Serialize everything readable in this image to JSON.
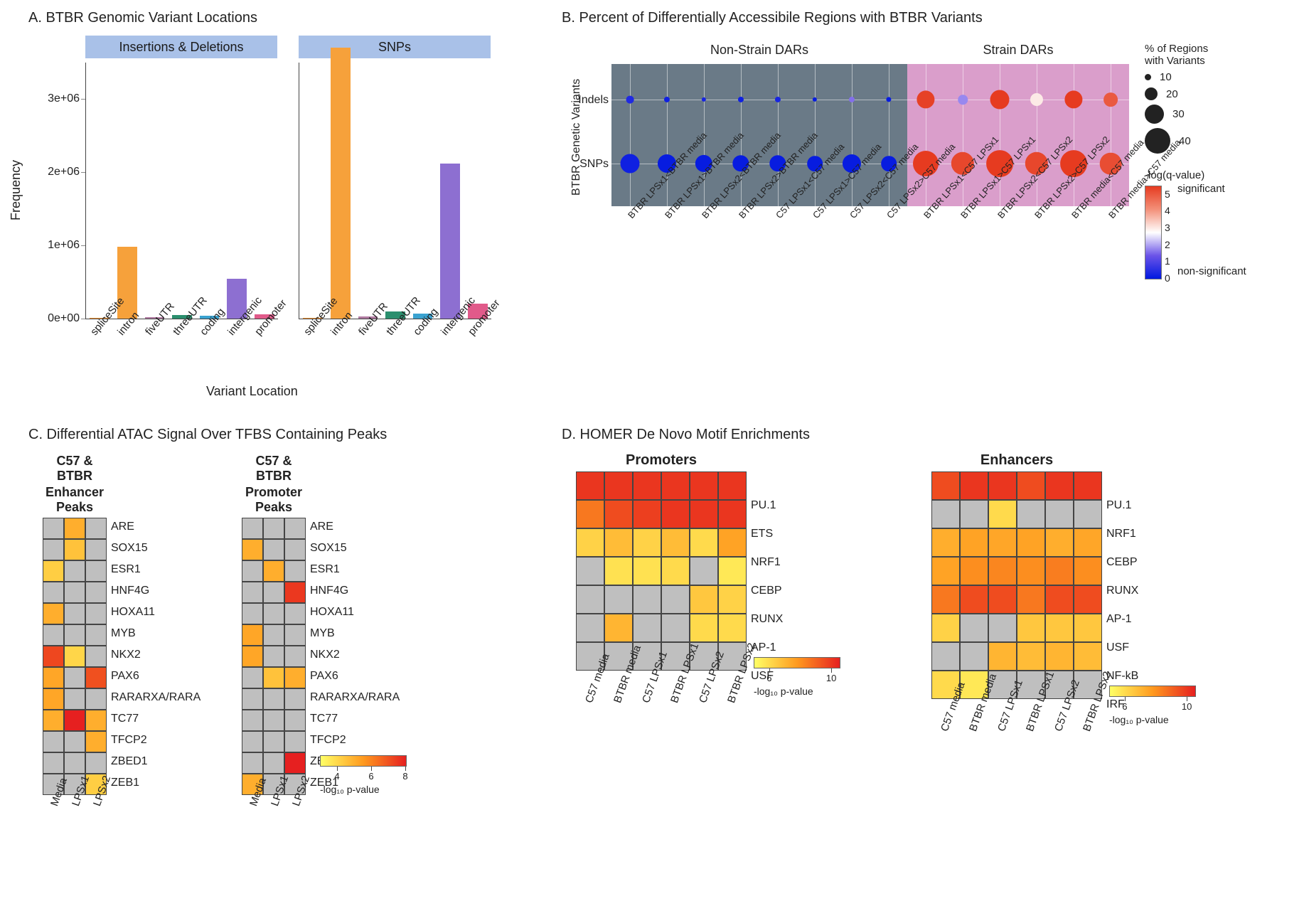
{
  "panelA": {
    "title": "A. BTBR Genomic Variant Locations",
    "ylabel": "Frequency",
    "xlabel": "Variant Location",
    "ylim": [
      0,
      3500000
    ],
    "yticks": [
      0,
      1000000,
      2000000,
      3000000
    ],
    "ytick_labels": [
      "0e+00",
      "1e+06",
      "2e+06",
      "3e+06"
    ],
    "categories": [
      "spliceSite",
      "intron",
      "fiveUTR",
      "threeUTR",
      "coding",
      "intergenic",
      "promoter"
    ],
    "cat_colors": [
      "#f28e2b",
      "#f6a13b",
      "#b07aa1",
      "#2b8f6e",
      "#3aa2d0",
      "#8d6fd1",
      "#e15a8a"
    ],
    "facets": [
      {
        "label": "Insertions & Deletions",
        "values": [
          1000,
          980000,
          15000,
          50000,
          40000,
          540000,
          60000
        ]
      },
      {
        "label": "SNPs",
        "values": [
          2000,
          3700000,
          30000,
          100000,
          70000,
          2120000,
          200000
        ]
      }
    ],
    "facet_bg": "#a9c1e8"
  },
  "panelB": {
    "title": "B. Percent of Differentially Accessibile Regions with BTBR Variants",
    "ylabel": "BTBR Genetic Variants",
    "row_labels": [
      "Indels",
      "SNPs"
    ],
    "regions": [
      {
        "label": "Non-Strain DARs",
        "bg": "#6a7a87",
        "cols": [
          "BTBR LPSx1<BTBR media",
          "BTBR LPSx1>BTBR media",
          "BTBR LPSx2<BTBR media",
          "BTBR LPSx2>BTBR media",
          "C57 LPSx1<C57 media",
          "C57 LPSx1>C57 media",
          "C57 LPSx2<C57 media",
          "C57 LPSx2>C57 media"
        ]
      },
      {
        "label": "Strain DARs",
        "bg": "#da9ecb",
        "cols": [
          "BTBR LPSx1<C57 LPSx1",
          "BTBR LPSx1>C57 LPSx1",
          "BTBR LPSx2<C57 LPSx2",
          "BTBR LPSx2>C57 LPSx2",
          "BTBR media<C57 media",
          "BTBR media>C57 media"
        ]
      }
    ],
    "points": {
      "Indels": [
        {
          "pct": 12,
          "q": 0.4
        },
        {
          "pct": 9,
          "q": 0.2
        },
        {
          "pct": 7,
          "q": 0.3
        },
        {
          "pct": 9,
          "q": 0.2
        },
        {
          "pct": 9,
          "q": 0.3
        },
        {
          "pct": 7,
          "q": 0.1
        },
        {
          "pct": 9,
          "q": 1.6
        },
        {
          "pct": 8,
          "q": 0.1
        },
        {
          "pct": 28,
          "q": 5.4
        },
        {
          "pct": 15,
          "q": 1.8
        },
        {
          "pct": 30,
          "q": 5.5
        },
        {
          "pct": 20,
          "q": 3.0
        },
        {
          "pct": 28,
          "q": 5.5
        },
        {
          "pct": 22,
          "q": 5.0
        }
      ],
      "SNPs": [
        {
          "pct": 30,
          "q": 0.2
        },
        {
          "pct": 29,
          "q": 0.1
        },
        {
          "pct": 27,
          "q": 0.1
        },
        {
          "pct": 26,
          "q": 0.1
        },
        {
          "pct": 26,
          "q": 0.1
        },
        {
          "pct": 24,
          "q": 0.1
        },
        {
          "pct": 29,
          "q": 0.1
        },
        {
          "pct": 24,
          "q": 0.1
        },
        {
          "pct": 40,
          "q": 5.5
        },
        {
          "pct": 36,
          "q": 5.3
        },
        {
          "pct": 42,
          "q": 5.5
        },
        {
          "pct": 36,
          "q": 5.3
        },
        {
          "pct": 42,
          "q": 5.5
        },
        {
          "pct": 34,
          "q": 5.2
        }
      ]
    },
    "size_legend": {
      "title": "% of Regions\nwith Variants",
      "levels": [
        10,
        20,
        30,
        40
      ],
      "scale": 0.9,
      "min": 6
    },
    "color_legend": {
      "title": "-log(q-value)",
      "min": 0,
      "max": 5.5,
      "stops": [
        "#0018e0",
        "#6b54e8",
        "#ffffff",
        "#f39079",
        "#e63b20"
      ],
      "sig_label": "significant",
      "nonsig_label": "non-significant",
      "ticks": [
        0,
        1,
        2,
        3,
        4,
        5
      ]
    }
  },
  "panelC": {
    "title": "C. Differential ATAC Signal Over TFBS Containing Peaks",
    "cols": [
      "Media",
      "LPSx1",
      "LPSx2"
    ],
    "rows": [
      "ARE",
      "SOX15",
      "ESR1",
      "HNF4G",
      "HOXA11",
      "MYB",
      "NKX2",
      "PAX6",
      "RARARXA/RARA",
      "TC77",
      "TFCP2",
      "ZBED1",
      "ZEB1"
    ],
    "cell": 30,
    "legend": {
      "title": "-log₁₀ p-value",
      "min": 3,
      "max": 8,
      "ticks": [
        4,
        6,
        8
      ]
    },
    "heatmaps": [
      {
        "subtitle": "C57 & BTBR",
        "subtitle2": "Enhancer Peaks",
        "vals": [
          [
            null,
            5.0,
            null
          ],
          [
            null,
            4.5,
            null
          ],
          [
            4.2,
            null,
            null
          ],
          [
            null,
            null,
            null
          ],
          [
            5.0,
            null,
            null
          ],
          [
            null,
            null,
            null
          ],
          [
            7.2,
            4.0,
            null
          ],
          [
            5.2,
            null,
            7.0
          ],
          [
            5.2,
            null,
            null
          ],
          [
            5.0,
            8.2,
            5.0
          ],
          [
            null,
            null,
            5.0
          ],
          [
            null,
            null,
            null
          ],
          [
            null,
            null,
            4.2
          ]
        ]
      },
      {
        "subtitle": "C57 & BTBR",
        "subtitle2": "Promoter Peaks",
        "vals": [
          [
            null,
            null,
            null
          ],
          [
            5.0,
            null,
            null
          ],
          [
            null,
            5.0,
            null
          ],
          [
            null,
            null,
            7.5
          ],
          [
            null,
            null,
            null
          ],
          [
            5.2,
            null,
            null
          ],
          [
            5.2,
            null,
            null
          ],
          [
            null,
            4.5,
            5.0
          ],
          [
            null,
            null,
            null
          ],
          [
            null,
            null,
            null
          ],
          [
            null,
            null,
            null
          ],
          [
            null,
            null,
            8.0
          ],
          [
            5.0,
            null,
            null
          ]
        ]
      }
    ]
  },
  "panelD": {
    "title": "D. HOMER De Novo Motif Enrichments",
    "cols": [
      "C57 media",
      "BTBR media",
      "C57 LPSx1",
      "BTBR LPSx1",
      "C57 LPSx2",
      "BTBR LPSx2"
    ],
    "cell": 40,
    "legend": {
      "title": "-log₁₀ p-value",
      "min": 5,
      "max": 10.5,
      "ticks": [
        6,
        10
      ]
    },
    "heatmaps": [
      {
        "subtitle": "Promoters",
        "rows": [
          "PU.1",
          "ETS",
          "NRF1",
          "CEBP",
          "RUNX",
          "AP-1",
          "USF"
        ],
        "vals": [
          [
            10,
            10,
            10,
            10,
            10,
            10
          ],
          [
            8.5,
            9.5,
            9.8,
            10,
            10,
            10
          ],
          [
            6.2,
            6.8,
            6.2,
            6.8,
            6.0,
            7.5
          ],
          [
            null,
            5.8,
            5.8,
            6.0,
            null,
            5.6
          ],
          [
            null,
            null,
            null,
            null,
            6.5,
            6.2
          ],
          [
            null,
            7.0,
            null,
            null,
            6.0,
            6.0
          ],
          [
            null,
            null,
            null,
            null,
            null,
            null
          ]
        ]
      },
      {
        "subtitle": "Enhancers",
        "rows": [
          "PU.1",
          "NRF1",
          "CEBP",
          "RUNX",
          "AP-1",
          "USF",
          "NF-kB",
          "IRF"
        ],
        "vals": [
          [
            9.5,
            10,
            10,
            9.5,
            10,
            10
          ],
          [
            null,
            null,
            6.0,
            null,
            null,
            null
          ],
          [
            7.2,
            7.5,
            7.4,
            7.5,
            7.2,
            7.4
          ],
          [
            7.5,
            8.0,
            8.2,
            8.0,
            8.4,
            8.0
          ],
          [
            8.5,
            9.5,
            9.5,
            8.5,
            9.5,
            9.5
          ],
          [
            6.2,
            null,
            null,
            6.5,
            6.5,
            6.5
          ],
          [
            null,
            null,
            7.0,
            6.8,
            7.0,
            6.8
          ],
          [
            6.0,
            5.6,
            null,
            null,
            null,
            null
          ]
        ]
      }
    ]
  },
  "colors": {
    "grey": "#bfbfbf",
    "heat_low": "#ffff66",
    "heat_mid": "#ff9a1f",
    "heat_high": "#e62020"
  }
}
